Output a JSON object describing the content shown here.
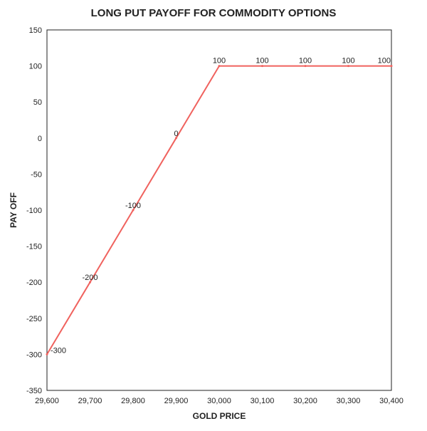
{
  "chart_data": {
    "type": "line",
    "title": "LONG PUT PAYOFF FOR COMMODITY OPTIONS",
    "xlabel": "GOLD PRICE",
    "ylabel": "PAY OFF",
    "x": [
      29600,
      29700,
      29800,
      29900,
      30000,
      30100,
      30200,
      30300,
      30400
    ],
    "x_tick_labels": [
      "29,600",
      "29,700",
      "29,800",
      "29,900",
      "30,000",
      "30,100",
      "30,200",
      "30,300",
      "30,400"
    ],
    "xlim": [
      29600,
      30400
    ],
    "y_ticks": [
      150,
      100,
      50,
      0,
      -50,
      -100,
      -150,
      -200,
      -250,
      -300,
      -350
    ],
    "ylim": [
      -350,
      150
    ],
    "grid": false,
    "series": [
      {
        "color": "#f0625e",
        "values": [
          -300,
          -200,
          -100,
          0,
          100,
          100,
          100,
          100,
          100
        ],
        "data_labels": [
          "-300",
          "-200",
          "-100",
          "0",
          "100",
          "100",
          "100",
          "100",
          "100"
        ]
      }
    ]
  }
}
